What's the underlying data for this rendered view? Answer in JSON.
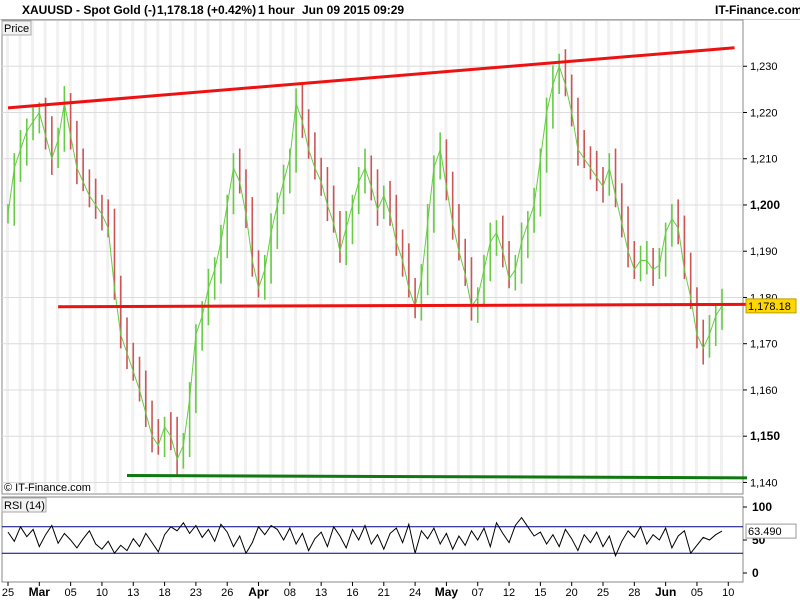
{
  "header": {
    "symbol": "XAUUSD - Spot Gold (-)",
    "last_change": "1,178.18 (+0.42%)",
    "timeframe": "1 hour",
    "datetime": "Jun 09 2015 09:29",
    "brand": "IT-Finance.com"
  },
  "price_panel": {
    "label": "Price",
    "watermark": "© IT-Finance.com",
    "current_value_label": "1,178.18"
  },
  "rsi_panel": {
    "label": "RSI (14)",
    "current_value_label": "63.490"
  },
  "colors": {
    "price_bars": "#66cc44",
    "price_bars_down": "#cc5555",
    "resistance_trendline": "#ee1111",
    "support_line": "#ee1111",
    "lower_line": "#117711",
    "rsi_line": "#000000",
    "rsi_bands": "#000080",
    "current_tag": "#ffd700"
  },
  "chart_data": [
    {
      "type": "line",
      "title": "XAUUSD - Spot Gold (-)",
      "ylabel": "Price",
      "ylim": [
        1137.5,
        1240
      ],
      "y_ticks": [
        "1,140",
        "1,150",
        "1,160",
        "1,170",
        "1,180",
        "1,190",
        "1,200",
        "1,210",
        "1,220",
        "1,230"
      ],
      "y_ticks_bold": [
        "1,150",
        "1,200"
      ],
      "x_ticks": [
        "25",
        "Mar",
        "05",
        "10",
        "13",
        "18",
        "23",
        "26",
        "Apr",
        "08",
        "13",
        "16",
        "21",
        "24",
        "May",
        "07",
        "12",
        "15",
        "20",
        "25",
        "28",
        "Jun",
        "05",
        "10"
      ],
      "x_ticks_bold": [
        "Mar",
        "Apr",
        "May",
        "Jun"
      ],
      "x_tick_index": [
        0,
        5,
        10,
        15,
        20,
        25,
        30,
        35,
        40,
        45,
        50,
        55,
        60,
        65,
        70,
        75,
        80,
        85,
        90,
        95,
        100,
        105,
        110,
        115
      ],
      "series": [
        {
          "values": [
            1198,
            1208,
            1212,
            1216,
            1218,
            1220,
            1215,
            1210,
            1214,
            1222,
            1215,
            1208,
            1205,
            1202,
            1200,
            1198,
            1195,
            1182,
            1172,
            1168,
            1164,
            1160,
            1155,
            1150,
            1148,
            1152,
            1150,
            1145,
            1148,
            1158,
            1172,
            1176,
            1182,
            1186,
            1192,
            1200,
            1208,
            1205,
            1198,
            1188,
            1182,
            1186,
            1194,
            1200,
            1205,
            1210,
            1222,
            1218,
            1212,
            1208,
            1205,
            1200,
            1196,
            1190,
            1195,
            1200,
            1205,
            1208,
            1204,
            1199,
            1202,
            1198,
            1192,
            1188,
            1182,
            1178,
            1184,
            1196,
            1208,
            1212,
            1204,
            1196,
            1190,
            1185,
            1178,
            1180,
            1186,
            1192,
            1194,
            1190,
            1184,
            1186,
            1192,
            1196,
            1200,
            1210,
            1220,
            1226,
            1230,
            1226,
            1220,
            1212,
            1210,
            1208,
            1206,
            1204,
            1208,
            1202,
            1196,
            1190,
            1186,
            1188,
            1188,
            1186,
            1187,
            1194,
            1197,
            1195,
            1186,
            1180,
            1172,
            1169,
            1172,
            1176,
            1178.18
          ]
        },
        {
          "values": [
            1200,
            1200,
            1200,
            1200,
            1200,
            1200,
            1200,
            1200,
            1200,
            1200,
            1200,
            1200,
            1200,
            1200,
            1200,
            1200,
            1200,
            1200,
            1200,
            1200,
            1200,
            1200,
            1200,
            1200,
            1200,
            1200,
            1200,
            1200,
            1200,
            1200,
            1200,
            1200,
            1200,
            1200,
            1200,
            1200,
            1200,
            1200,
            1200,
            1200,
            1200,
            1200,
            1200,
            1200,
            1200,
            1200,
            1200,
            1200,
            1200,
            1200,
            1200,
            1200,
            1200,
            1200,
            1200,
            1200,
            1200,
            1200,
            1200,
            1200,
            1200,
            1200,
            1200,
            1200,
            1200,
            1200,
            1200,
            1200,
            1200,
            1200,
            1200,
            1200,
            1200,
            1200,
            1200,
            1200,
            1200,
            1200,
            1200,
            1200,
            1200,
            1200,
            1200,
            1200,
            1200,
            1200,
            1200,
            1200,
            1200,
            1200,
            1200,
            1200,
            1200,
            1200,
            1200,
            1200,
            1200,
            1200,
            1200,
            1200,
            1200,
            1200,
            1200,
            1200,
            1200,
            1200,
            1200,
            1200,
            1200,
            1200,
            1200,
            1200,
            1200,
            1200,
            1200
          ]
        }
      ],
      "trendlines": [
        {
          "name": "resistance",
          "from": [
            0,
            1221
          ],
          "to": [
            116,
            1234
          ]
        },
        {
          "name": "support",
          "from": [
            8,
            1178
          ],
          "to": [
            118,
            1178.5
          ]
        },
        {
          "name": "lower",
          "from": [
            19,
            1141.5
          ],
          "to": [
            118,
            1141
          ]
        }
      ],
      "current_value": 1178.18
    },
    {
      "type": "line",
      "title": "RSI (14)",
      "ylim": [
        0,
        100
      ],
      "y_ticks": [
        "0",
        "50",
        "100"
      ],
      "bands": [
        30,
        70
      ],
      "series": [
        {
          "values": [
            62,
            48,
            70,
            55,
            66,
            40,
            58,
            72,
            45,
            60,
            50,
            38,
            52,
            64,
            44,
            36,
            48,
            30,
            42,
            34,
            52,
            40,
            60,
            46,
            32,
            58,
            70,
            64,
            76,
            60,
            72,
            54,
            66,
            48,
            74,
            62,
            40,
            56,
            30,
            46,
            70,
            58,
            72,
            66,
            50,
            68,
            44,
            60,
            34,
            52,
            62,
            40,
            70,
            56,
            38,
            66,
            50,
            72,
            44,
            58,
            36,
            60,
            68,
            46,
            74,
            30,
            64,
            52,
            68,
            44,
            60,
            36,
            56,
            42,
            64,
            50,
            68,
            40,
            76,
            60,
            46,
            72,
            84,
            70,
            56,
            62,
            44,
            58,
            40,
            66,
            52,
            34,
            58,
            46,
            62,
            40,
            56,
            26,
            48,
            64,
            54,
            70,
            44,
            58,
            50,
            68,
            38,
            56,
            64,
            30,
            42,
            54,
            50,
            58,
            63.49
          ]
        }
      ],
      "current_value": 63.49
    }
  ]
}
